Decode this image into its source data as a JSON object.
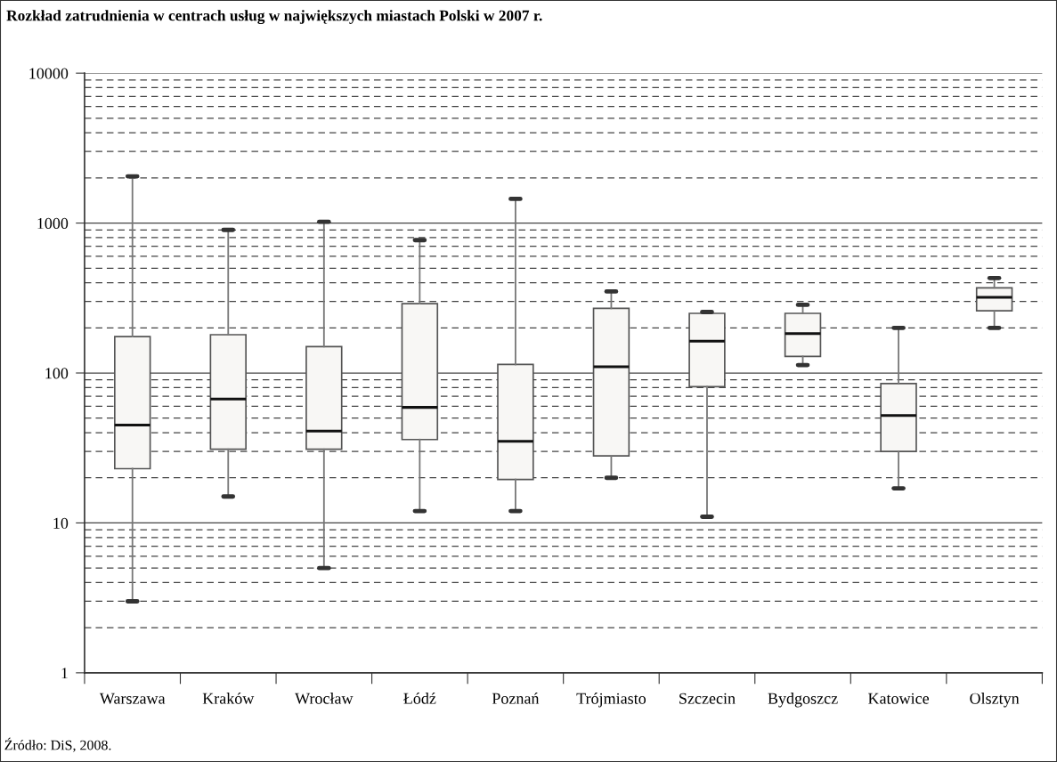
{
  "chart_data": {
    "type": "box",
    "title": "Rozkład zatrudnienia w centrach usług w największych miastach Polski w 2007 r.",
    "categories": [
      "Warszawa",
      "Kraków",
      "Wrocław",
      "Łódź",
      "Poznań",
      "Trójmiasto",
      "Szczecin",
      "Bydgoszcz",
      "Katowice",
      "Olsztyn"
    ],
    "boxes": [
      {
        "low": 3,
        "q1": 23,
        "median": 45,
        "q3": 175,
        "high": 2050
      },
      {
        "low": 15,
        "q1": 31,
        "median": 67,
        "q3": 180,
        "high": 900
      },
      {
        "low": 5,
        "q1": 31,
        "median": 41,
        "q3": 150,
        "high": 1020
      },
      {
        "low": 12,
        "q1": 36,
        "median": 59,
        "q3": 290,
        "high": 770
      },
      {
        "low": 12,
        "q1": 19.5,
        "median": 35,
        "q3": 114,
        "high": 1450
      },
      {
        "low": 20,
        "q1": 28,
        "median": 110,
        "q3": 270,
        "high": 350
      },
      {
        "low": 11,
        "q1": 81,
        "median": 163,
        "q3": 250,
        "high": 255
      },
      {
        "low": 113,
        "q1": 129,
        "median": 183,
        "q3": 250,
        "high": 285
      },
      {
        "low": 17,
        "q1": 30,
        "median": 52,
        "q3": 85,
        "high": 200
      },
      {
        "low": 200,
        "q1": 260,
        "median": 320,
        "q3": 370,
        "high": 430
      }
    ],
    "log": true,
    "ylim": [
      1,
      10000
    ],
    "yticks": [
      1,
      10,
      100,
      1000,
      10000
    ],
    "grid": "y",
    "annotations": [
      "Źródło: DiS, 2008."
    ]
  }
}
